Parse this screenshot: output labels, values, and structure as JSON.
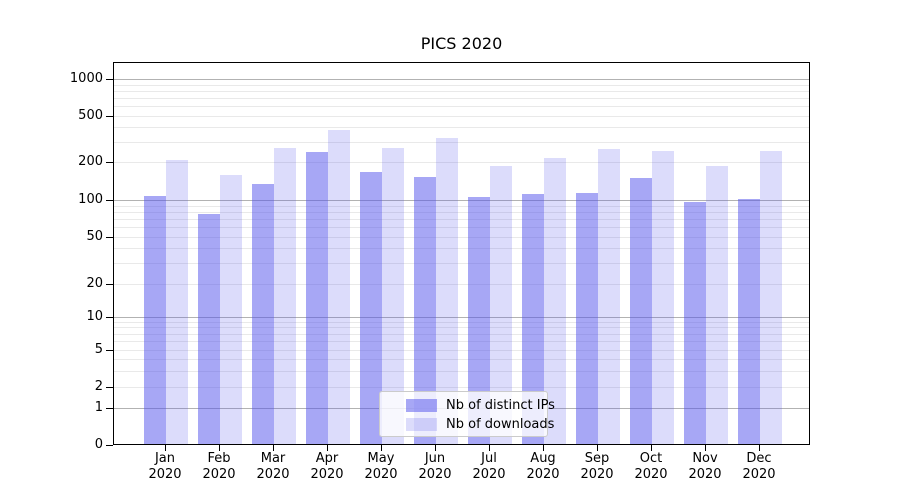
{
  "chart_data": {
    "type": "bar",
    "title": "PICS 2020",
    "categories": [
      "Jan",
      "Feb",
      "Mar",
      "Apr",
      "May",
      "Jun",
      "Jul",
      "Aug",
      "Sep",
      "Oct",
      "Nov",
      "Dec"
    ],
    "category_year": "2020",
    "series": [
      {
        "name": "Nb of distinct IPs",
        "color": "rgba(80,80,235,0.5)",
        "values": [
          107,
          76,
          133,
          240,
          166,
          149,
          104,
          110,
          113,
          148,
          95,
          100
        ]
      },
      {
        "name": "Nb of downloads",
        "color": "rgba(80,80,235,0.2)",
        "values": [
          207,
          157,
          260,
          370,
          260,
          315,
          182,
          215,
          255,
          247,
          185,
          245
        ]
      }
    ],
    "yscale": "symlog",
    "ylim": [
      0,
      1200
    ],
    "y_ticks": [
      1000,
      500,
      200,
      100,
      50,
      20,
      10,
      5,
      2,
      1,
      0
    ],
    "major_grid_ticks": [
      1000,
      100,
      10,
      1
    ],
    "minor_gridlines": [
      900,
      800,
      700,
      600,
      400,
      300,
      90,
      80,
      70,
      60,
      40,
      30,
      9,
      8,
      7,
      6,
      4,
      3
    ],
    "grid": true,
    "legend_position": "lower center",
    "colors": {
      "major_grid": "#b2b2b2",
      "minor_grid": "#e9e9e9",
      "axis": "#000000"
    }
  }
}
